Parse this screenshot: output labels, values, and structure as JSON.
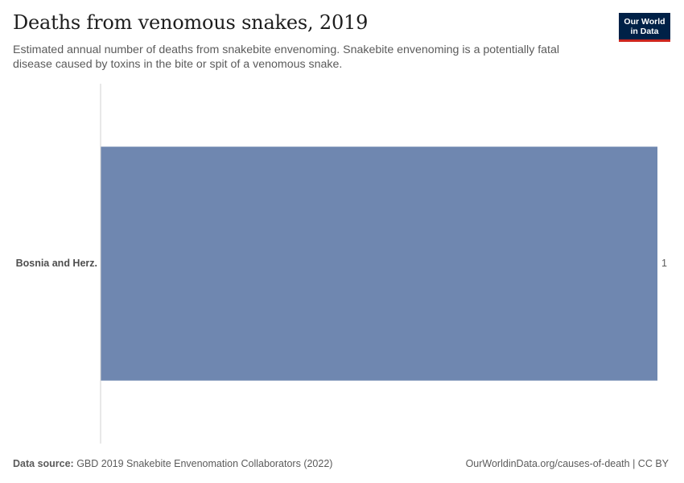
{
  "header": {
    "title": "Deaths from venomous snakes, 2019",
    "subtitle": "Estimated annual number of deaths from snakebite envenoming. Snakebite envenoming is a potentially fatal disease caused by toxins in the bite or spit of a venomous snake.",
    "logo_line1": "Our World",
    "logo_line2": "in Data"
  },
  "footer": {
    "source_label": "Data source:",
    "source_text": " GBD 2019 Snakebite Envenomation Collaborators (2022)",
    "url_license": "OurWorldinData.org/causes-of-death | CC BY"
  },
  "colors": {
    "bar": "#6f87b0",
    "axis": "#d0d0d0",
    "logo_bg": "#002147",
    "logo_accent": "#ce261e"
  },
  "chart_data": {
    "type": "bar",
    "orientation": "horizontal",
    "categories": [
      "Bosnia and Herz."
    ],
    "values": [
      1
    ],
    "value_labels": [
      "1"
    ],
    "xlim": [
      0,
      1
    ],
    "grid": false
  }
}
